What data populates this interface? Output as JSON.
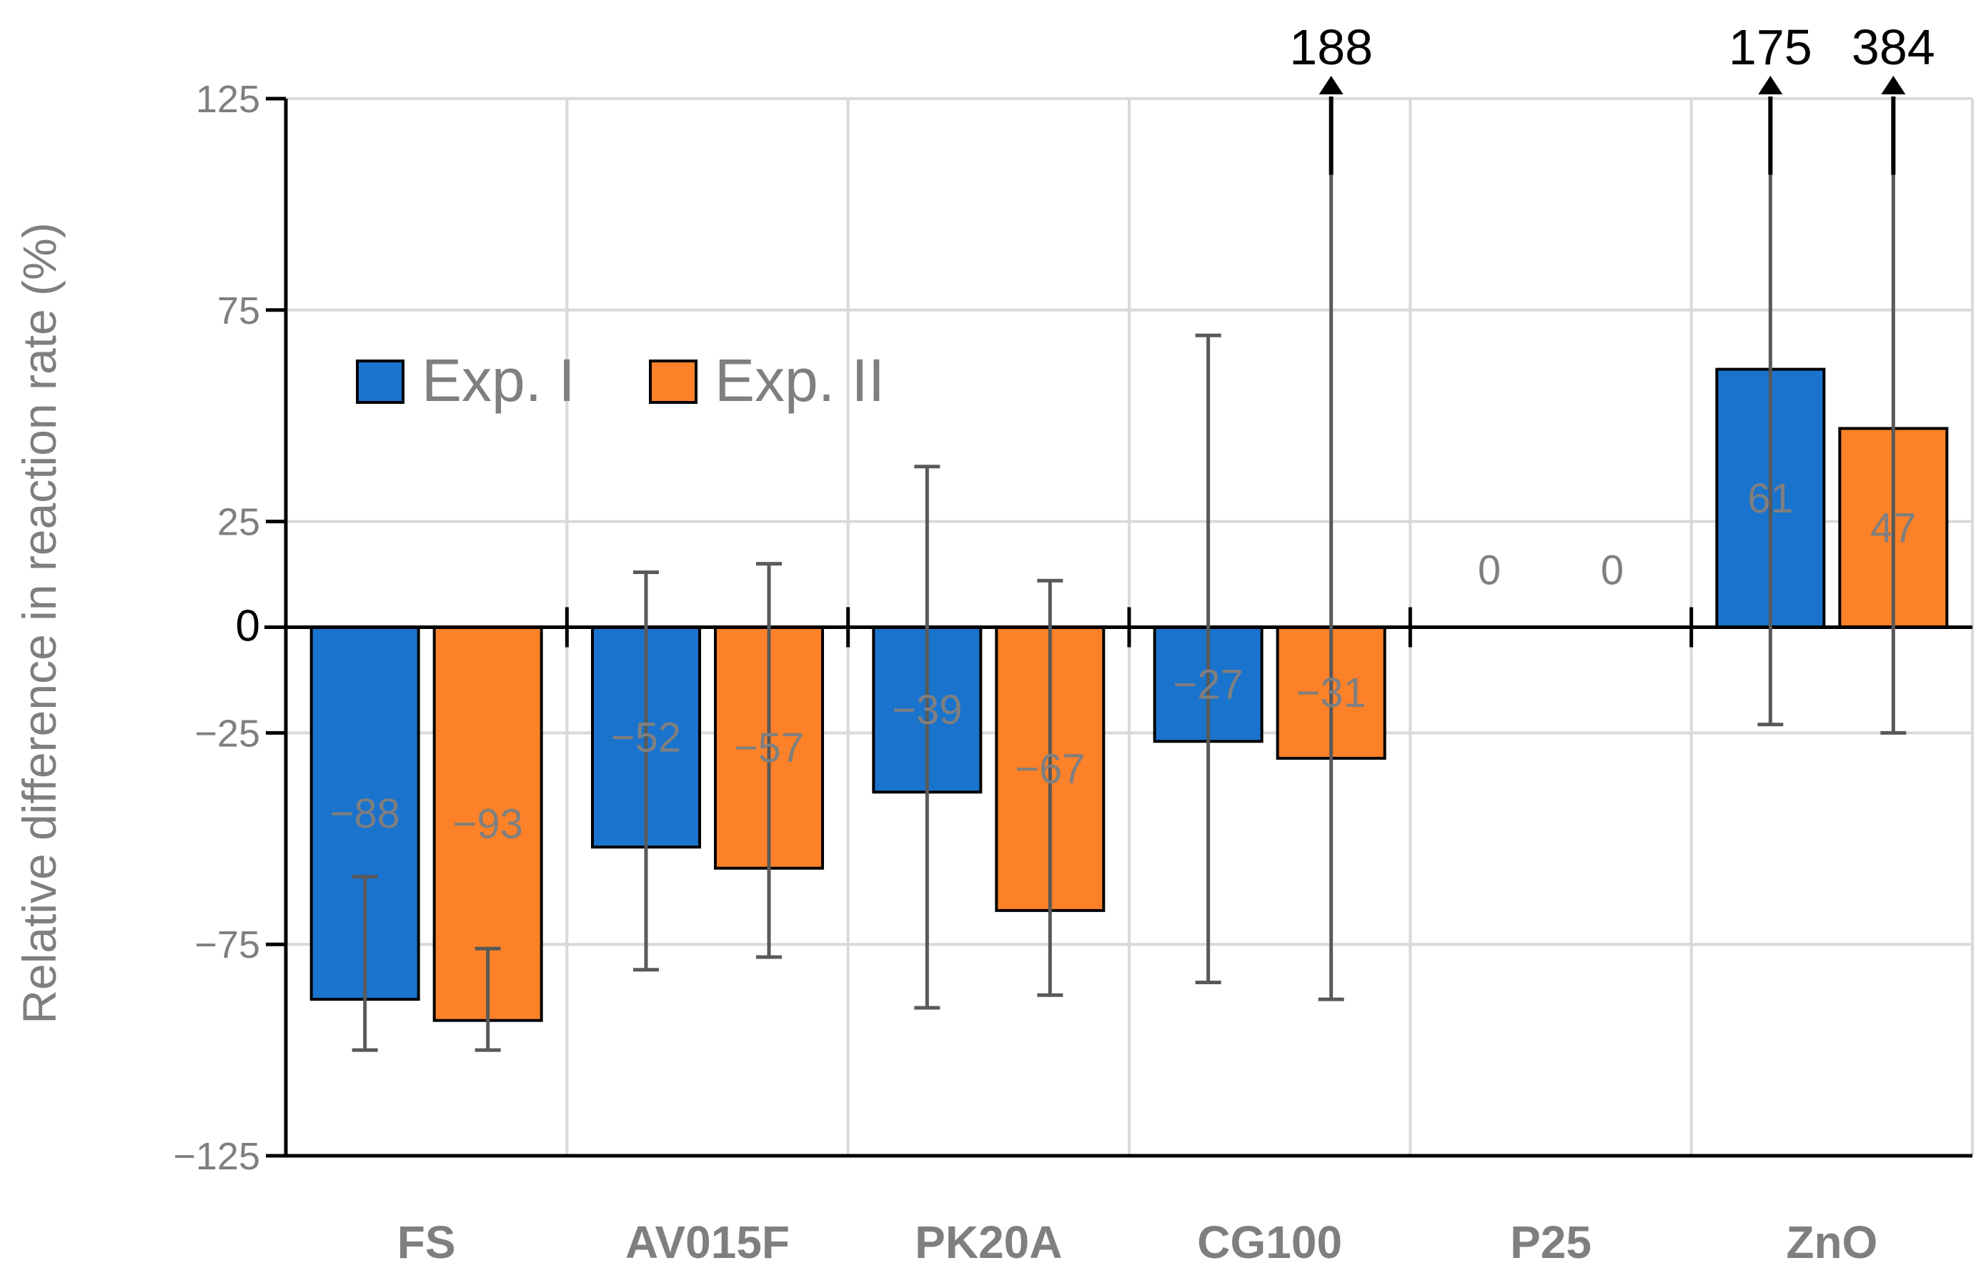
{
  "chart_data": {
    "type": "bar",
    "title": "",
    "xlabel": "",
    "ylabel": "Relative difference in reaction rate (%)",
    "ylim": [
      -125,
      125
    ],
    "yticks": [
      {
        "value": 125,
        "label": "125"
      },
      {
        "value": 75,
        "label": "75"
      },
      {
        "value": 25,
        "label": "25"
      },
      {
        "value": 0,
        "label": "0"
      },
      {
        "value": -25,
        "label": "−25"
      },
      {
        "value": -75,
        "label": "−75"
      },
      {
        "value": -125,
        "label": "−125"
      }
    ],
    "grid": true,
    "legend_position": "upper-left",
    "categories": [
      "FS",
      "AV015F",
      "PK20A",
      "CG100",
      "P25",
      "ZnO"
    ],
    "series": [
      {
        "name": "Exp. I",
        "color": "#1a73cc",
        "values": [
          -88,
          -52,
          -39,
          -27,
          0,
          61
        ],
        "labels": [
          "−88",
          "−52",
          "−39",
          "−27",
          "0",
          "61"
        ],
        "error_low": [
          -100,
          -81,
          -90,
          -84,
          null,
          -23
        ],
        "error_high": [
          -59,
          13,
          38,
          69,
          null,
          175
        ],
        "error_high_labels": [
          null,
          null,
          null,
          null,
          null,
          "175"
        ]
      },
      {
        "name": "Exp. II",
        "color": "#fd8128",
        "values": [
          -93,
          -57,
          -67,
          -31,
          0,
          47
        ],
        "labels": [
          "−93",
          "−57",
          "−67",
          "−31",
          "0",
          "47"
        ],
        "error_low": [
          -100,
          -78,
          -87,
          -88,
          null,
          -25
        ],
        "error_high": [
          -76,
          15,
          11,
          188,
          null,
          384
        ],
        "error_high_labels": [
          null,
          null,
          null,
          "188",
          null,
          "384"
        ]
      }
    ],
    "error_display_cap": 107
  }
}
